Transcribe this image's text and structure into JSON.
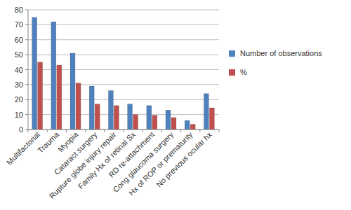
{
  "chart_data": {
    "type": "bar",
    "categories": [
      "Multifactorial",
      "Trauma",
      "Myopia",
      "Cataract surgery",
      "Rupture globe injury repair",
      "Family Hx of retinal Sx",
      "RD re-attachment",
      "Cong glaucoma surgery",
      "Hx of ROP or prematurity",
      "No previous ocular hx"
    ],
    "series": [
      {
        "name": "Number of observations",
        "color": "#4f81bd",
        "values": [
          75,
          72,
          51,
          29,
          26,
          17,
          16,
          13,
          6,
          24
        ]
      },
      {
        "name": "%",
        "color": "#c0504d",
        "values": [
          45,
          43,
          31,
          17,
          16,
          10,
          9.5,
          8,
          3.5,
          14.5
        ]
      }
    ],
    "ylim": [
      0,
      80
    ],
    "yticks": [
      0,
      10,
      20,
      30,
      40,
      50,
      60,
      70,
      80
    ],
    "grid": true,
    "legend": "right"
  }
}
